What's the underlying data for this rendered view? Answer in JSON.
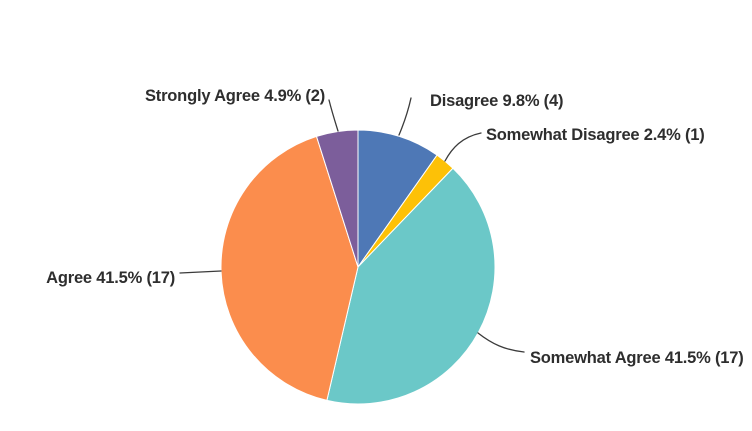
{
  "chart_data": {
    "type": "pie",
    "title": "",
    "legend": "none",
    "label_style": "outside-callout",
    "categories": [
      "Disagree",
      "Somewhat Disagree",
      "Somewhat Agree",
      "Agree",
      "Strongly Agree"
    ],
    "values": [
      9.8,
      2.4,
      41.5,
      41.5,
      4.9
    ],
    "counts": [
      4,
      1,
      17,
      17,
      2
    ],
    "colors": [
      "#4e78b6",
      "#fdc107",
      "#6bc8c8",
      "#fb8d4d",
      "#7c5e9b"
    ],
    "labels": [
      "Disagree 9.8% (4)",
      "Somewhat Disagree 2.4% (1)",
      "Somewhat Agree 41.5% (17)",
      "Agree 41.5% (17)",
      "Strongly Agree 4.9% (2)"
    ],
    "start_angle_deg": 0,
    "direction": "clockwise",
    "leader_line_color": "#3b3b3b",
    "slice_border_color": "#ffffff"
  }
}
